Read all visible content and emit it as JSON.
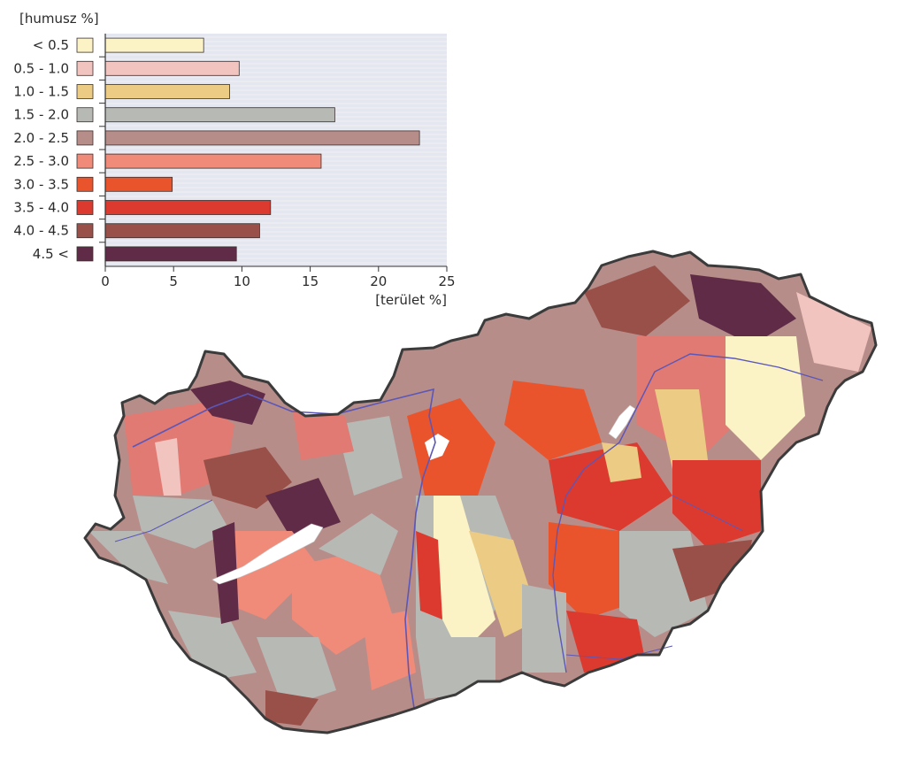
{
  "legend_title": "[humusz %]",
  "chart_data": {
    "type": "bar",
    "orientation": "horizontal",
    "title": "",
    "ylabel": "[humusz %]",
    "xlabel": "[terület %]",
    "xlim": [
      0,
      25
    ],
    "xticks": [
      "0",
      "5",
      "10",
      "15",
      "20",
      "25"
    ],
    "grid": true,
    "categories": [
      "< 0.5",
      "0.5 - 1.0",
      "1.0 - 1.5",
      "1.5 - 2.0",
      "2.0 - 2.5",
      "2.5 - 3.0",
      "3.0 - 3.5",
      "3.5 - 4.0",
      "4.0 - 4.5",
      "4.5 <"
    ],
    "values": [
      7.2,
      9.8,
      9.1,
      16.8,
      23.0,
      15.8,
      4.9,
      12.1,
      11.3,
      9.6
    ],
    "colors": [
      "#fbf3c6",
      "#f1c4c0",
      "#eccb84",
      "#b7b9b4",
      "#b78d8a",
      "#f08a79",
      "#e9542c",
      "#dc3a2f",
      "#985048",
      "#5f2b46"
    ]
  },
  "map": {
    "description_colors": {
      "background_class": "#b78d8a",
      "water": "#ffffff",
      "rivers": "#5b57b8",
      "border": "#3b3b3b"
    }
  }
}
